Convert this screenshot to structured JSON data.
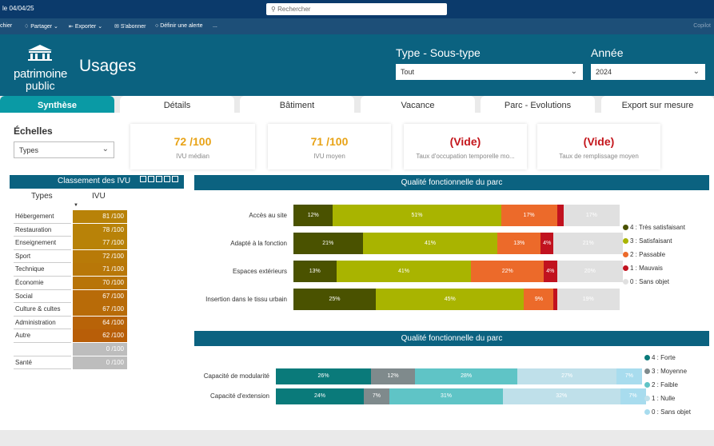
{
  "topbar": {
    "date_text": "le 04/04/25",
    "search_placeholder": "Rechercher"
  },
  "toolbar": {
    "items": [
      "chier",
      "Partager",
      "Exporter",
      "S'abonner",
      "Définir une alerte",
      "...",
      "Copilot"
    ]
  },
  "header": {
    "logo_line1": "patrimoine",
    "logo_line2": "public",
    "title": "Usages",
    "filter1_label": "Type - Sous-type",
    "filter1_value": "Tout",
    "filter2_label": "Année",
    "filter2_value": "2024"
  },
  "tabs": [
    "Synthèse",
    "Détails",
    "Bâtiment",
    "Vacance",
    "Parc - Evolutions",
    "Export sur mesure"
  ],
  "echelles": {
    "label": "Échelles",
    "value": "Types"
  },
  "cards": [
    {
      "value": "72 /100",
      "label": "IVU médian",
      "color": "#e8a317"
    },
    {
      "value": "71 /100",
      "label": "IVU moyen",
      "color": "#e8a317"
    },
    {
      "value": "(Vide)",
      "label": "Taux d'occupation temporelle mo...",
      "color": "#c4161c"
    },
    {
      "value": "(Vide)",
      "label": "Taux de remplissage moyen",
      "color": "#c4161c"
    }
  ],
  "classement": {
    "title": "Classement des IVU",
    "col_types": "Types",
    "col_ivu": "IVU",
    "rows": [
      {
        "name": "Hébergement",
        "value": "81 /100",
        "color": "#b88208"
      },
      {
        "name": "Restauration",
        "value": "78 /100",
        "color": "#b88208"
      },
      {
        "name": "Enseignement",
        "value": "77 /100",
        "color": "#b88208"
      },
      {
        "name": "Sport",
        "value": "72 /100",
        "color": "#b87a08"
      },
      {
        "name": "Technique",
        "value": "71 /100",
        "color": "#b87708"
      },
      {
        "name": "Économie",
        "value": "70 /100",
        "color": "#b87408"
      },
      {
        "name": "Social",
        "value": "67 /100",
        "color": "#b86b08"
      },
      {
        "name": "Culture & cultes",
        "value": "67 /100",
        "color": "#b86b08"
      },
      {
        "name": "Administration",
        "value": "64 /100",
        "color": "#b86308"
      },
      {
        "name": "Autre",
        "value": "62 /100",
        "color": "#b85e08"
      },
      {
        "name": "",
        "value": "0 /100",
        "color": "#bdbdbd"
      },
      {
        "name": "Santé",
        "value": "0 /100",
        "color": "#bdbdbd"
      }
    ]
  },
  "chart_data": [
    {
      "type": "bar",
      "orientation": "horizontal",
      "stacked": true,
      "title": "Qualité fonctionnelle du parc",
      "categories": [
        "Accès au site",
        "Adapté à la fonction",
        "Espaces extérieurs",
        "Insertion dans le tissu urbain"
      ],
      "series": [
        {
          "name": "4 : Très satisfaisant",
          "color": "#4a5200",
          "values": [
            12,
            21,
            13,
            25
          ]
        },
        {
          "name": "3 : Satisfaisant",
          "color": "#a9b400",
          "values": [
            51,
            41,
            41,
            45
          ]
        },
        {
          "name": "2 : Passable",
          "color": "#ec6a2a",
          "values": [
            17,
            13,
            22,
            9
          ]
        },
        {
          "name": "1 : Mauvais",
          "color": "#c1121f",
          "values": [
            2,
            4,
            4,
            1
          ]
        },
        {
          "name": "0 : Sans objet",
          "color": "#e0e0e0",
          "values": [
            17,
            21,
            20,
            19
          ]
        }
      ],
      "data_labels": [
        [
          "12%",
          "51%",
          "17%",
          "",
          "17%"
        ],
        [
          "21%",
          "41%",
          "13%",
          "4%",
          "21%"
        ],
        [
          "13%",
          "41%",
          "22%",
          "4%",
          "20%"
        ],
        [
          "25%",
          "45%",
          "9%",
          "",
          "19%"
        ]
      ],
      "legend_position": "right"
    },
    {
      "type": "bar",
      "orientation": "horizontal",
      "stacked": true,
      "title": "Qualité fonctionnelle du parc",
      "categories": [
        "Capacité de modularité",
        "Capacité d'extension"
      ],
      "series": [
        {
          "name": "4 : Forte",
          "color": "#0a7a7a",
          "values": [
            26,
            24
          ]
        },
        {
          "name": "3 : Moyenne",
          "color": "#7f8a8c",
          "values": [
            12,
            7
          ]
        },
        {
          "name": "2 : Faible",
          "color": "#5fc4c6",
          "values": [
            28,
            31
          ]
        },
        {
          "name": "1 : Nulle",
          "color": "#bfe0ea",
          "values": [
            27,
            32
          ]
        },
        {
          "name": "0 : Sans objet",
          "color": "#a8dcee",
          "values": [
            7,
            7
          ]
        }
      ],
      "data_labels": [
        [
          "26%",
          "12%",
          "28%",
          "27%",
          "7%"
        ],
        [
          "24%",
          "7%",
          "31%",
          "32%",
          "7%"
        ]
      ],
      "legend_position": "right"
    }
  ]
}
